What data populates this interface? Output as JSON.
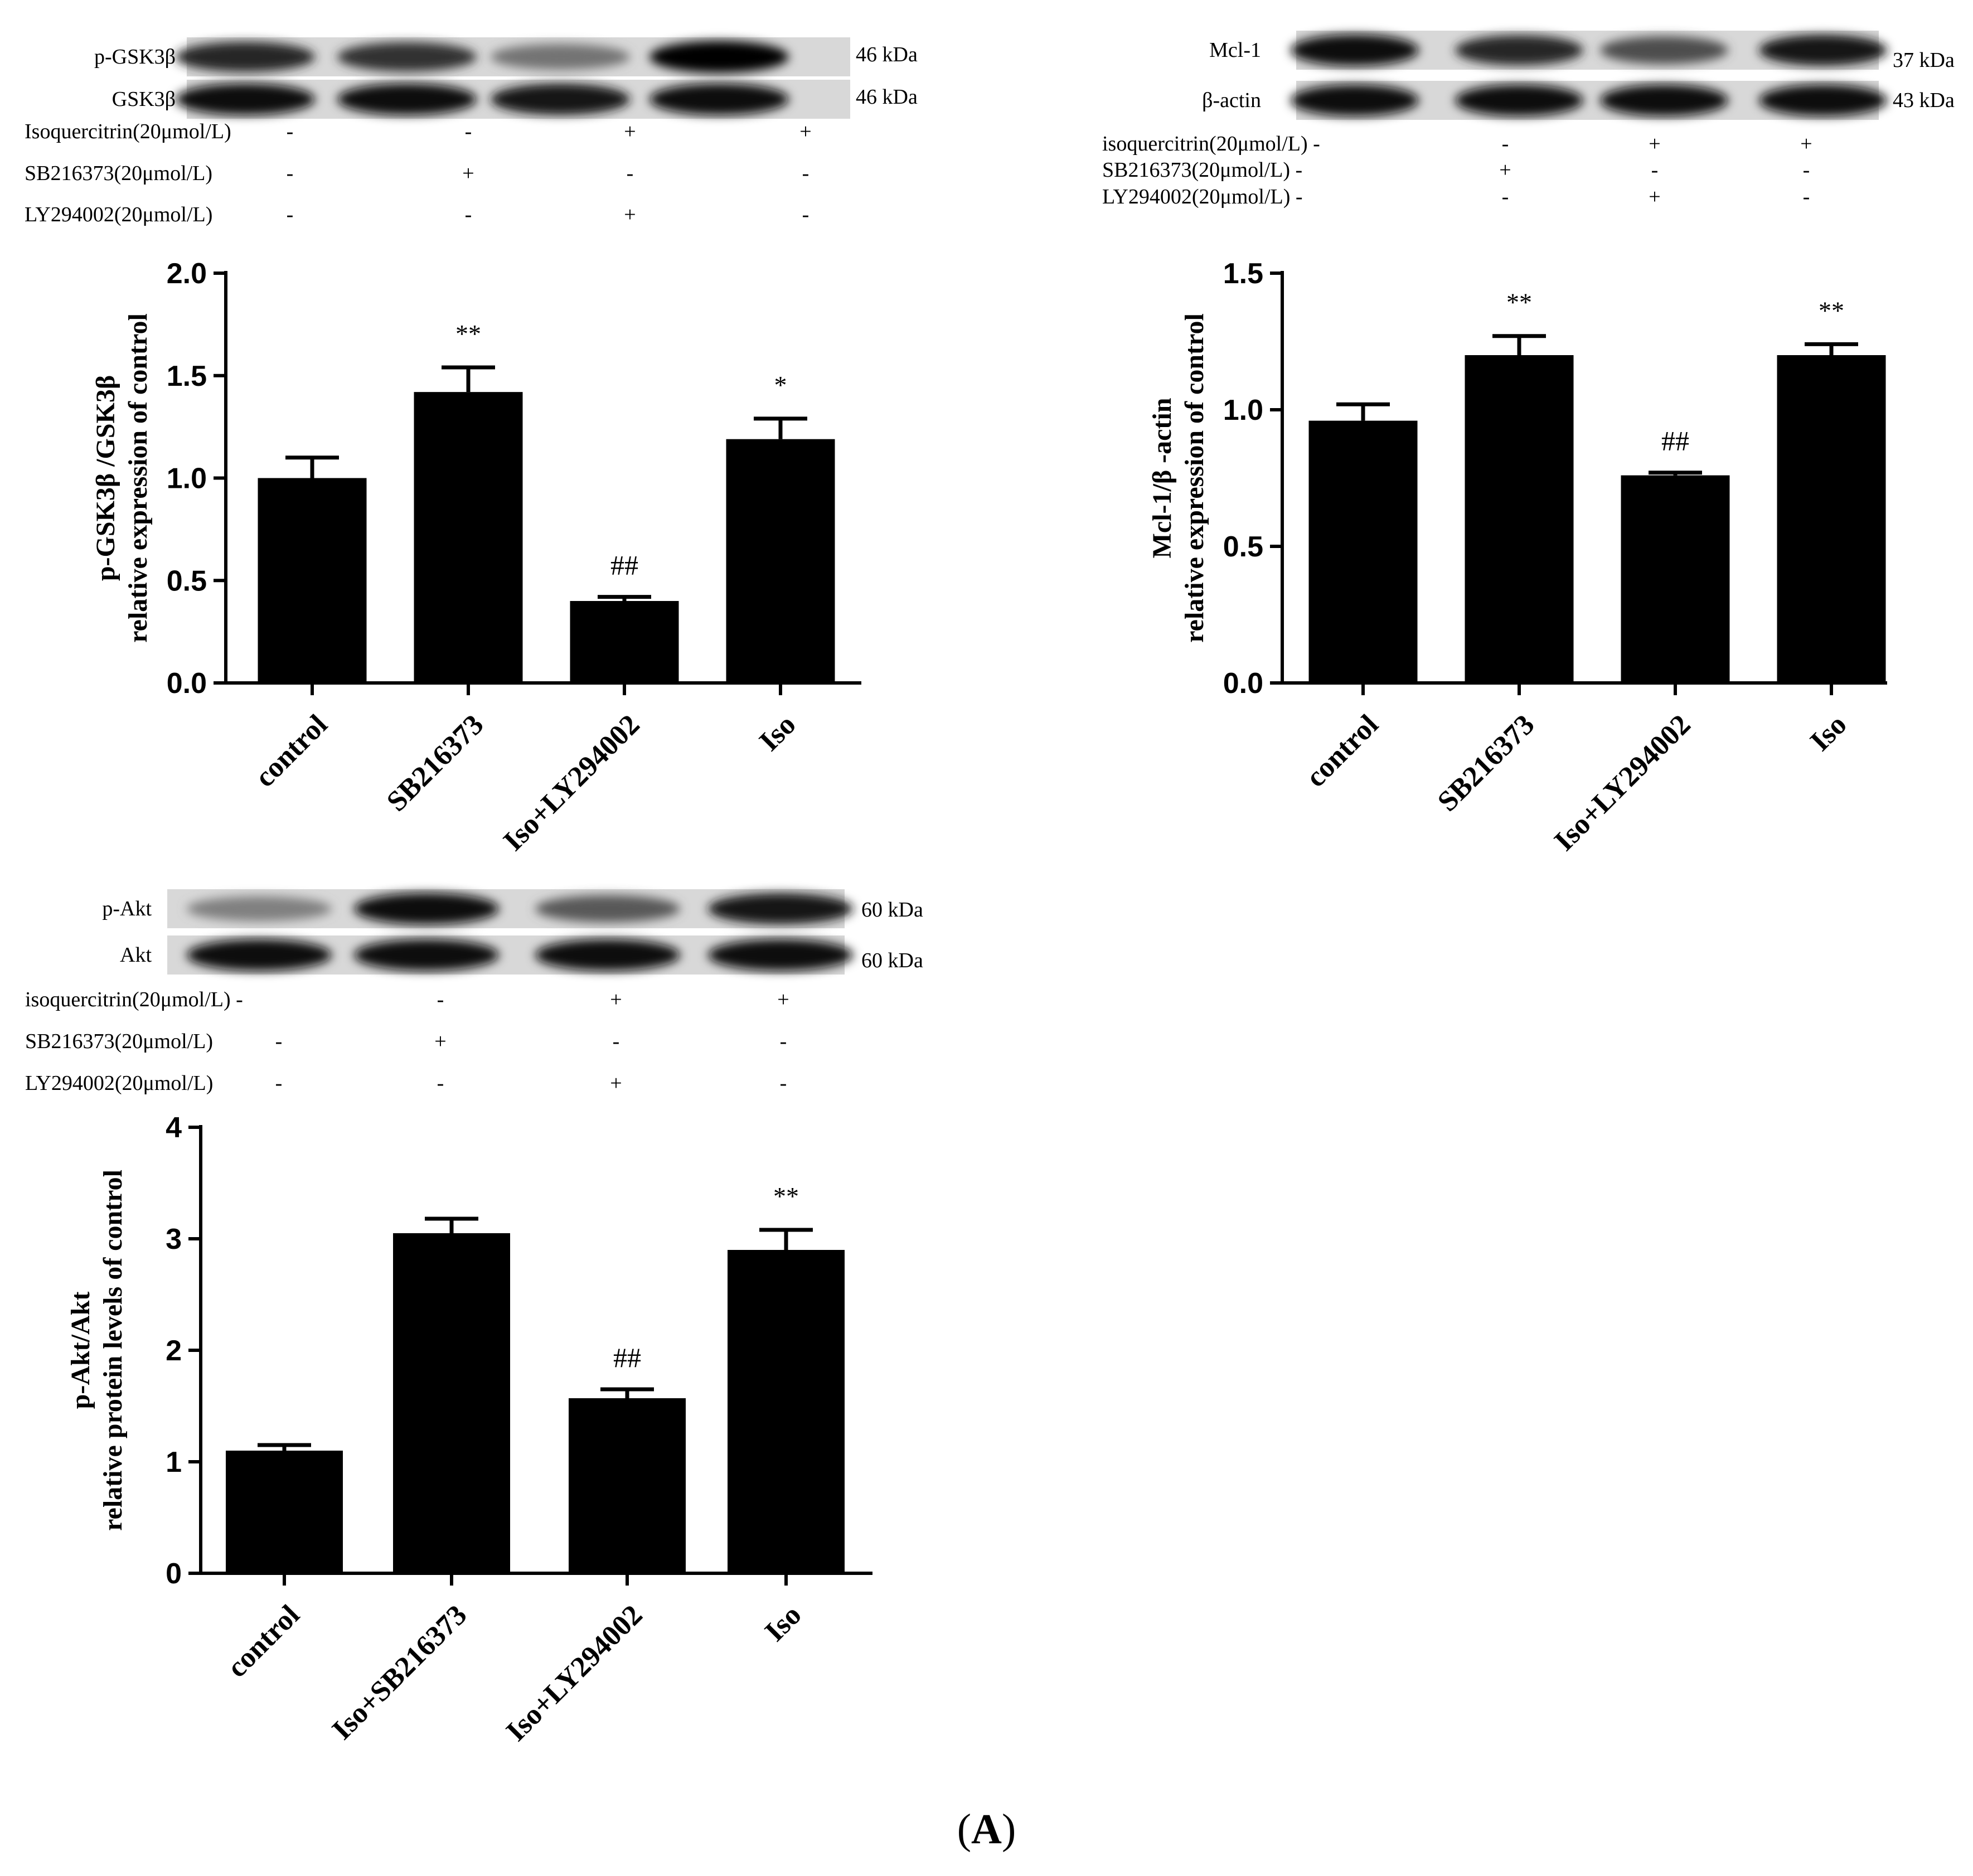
{
  "panel_label": "A",
  "panels": [
    {
      "blot": {
        "rows": [
          {
            "label": "p-GSK3β",
            "kda": "46 kDa",
            "intensity": [
              0.85,
              0.8,
              0.55,
              0.98
            ]
          },
          {
            "label": "GSK3β",
            "kda": "46 kDa",
            "intensity": [
              0.95,
              0.95,
              0.92,
              0.95
            ]
          }
        ],
        "treatments": [
          {
            "label": "Isoquercitrin(20μmol/L)",
            "signs": [
              "-",
              "-",
              "+",
              "+"
            ]
          },
          {
            "label": "SB216373(20μmol/L)",
            "signs": [
              "-",
              "+",
              "-",
              "-"
            ]
          },
          {
            "label": "LY294002(20μmol/L)",
            "signs": [
              "-",
              "-",
              "+",
              "-"
            ]
          }
        ]
      }
    },
    {
      "blot": {
        "rows": [
          {
            "label": "Mcl-1",
            "kda": "37 kDa",
            "intensity": [
              0.95,
              0.85,
              0.7,
              0.9
            ]
          },
          {
            "label": "β-actin",
            "kda": "43 kDa",
            "intensity": [
              0.95,
              0.95,
              0.95,
              0.95
            ]
          }
        ],
        "treatments": [
          {
            "label": "isoquercitrin(20μmol/L) -",
            "signs": [
              "-",
              "+",
              "+"
            ]
          },
          {
            "label": "SB216373(20μmol/L) -",
            "signs": [
              "+",
              "-",
              "-"
            ]
          },
          {
            "label": "LY294002(20μmol/L) -",
            "signs": [
              "-",
              "+",
              "-"
            ]
          }
        ]
      }
    },
    {
      "blot": {
        "rows": [
          {
            "label": "p-Akt",
            "kda": "60 kDa",
            "intensity": [
              0.5,
              0.95,
              0.65,
              0.9
            ]
          },
          {
            "label": "Akt",
            "kda": "60 kDa",
            "intensity": [
              0.95,
              0.95,
              0.95,
              0.95
            ]
          }
        ],
        "treatments": [
          {
            "label": "isoquercitrin(20μmol/L) -",
            "signs": [
              "-",
              "+",
              "+"
            ]
          },
          {
            "label": "SB216373(20μmol/L)",
            "signs": [
              "-",
              "+",
              "-",
              "-"
            ]
          },
          {
            "label": "LY294002(20μmol/L)",
            "signs": [
              "-",
              "-",
              "+",
              "-"
            ]
          }
        ]
      }
    }
  ],
  "chart_data": [
    {
      "type": "bar",
      "categories": [
        "control",
        "SB216373",
        "Iso+LY294002",
        "Iso"
      ],
      "values": [
        1.0,
        1.42,
        0.4,
        1.19
      ],
      "errors": [
        0.1,
        0.12,
        0.02,
        0.1
      ],
      "annotations": [
        "",
        "**",
        "##",
        "*"
      ],
      "ylabel": [
        "p-GSK3β /GSK3β",
        "relative expression of control"
      ],
      "ylim": [
        0,
        2.0
      ],
      "yticks": [
        0.0,
        0.5,
        1.0,
        1.5,
        2.0
      ],
      "ytick_labels": [
        "0.0",
        "0.5",
        "1.0",
        "1.5",
        "2.0"
      ],
      "grid": false,
      "bar_color": "#000000"
    },
    {
      "type": "bar",
      "categories": [
        "control",
        "SB216373",
        "Iso+LY294002",
        "Iso"
      ],
      "values": [
        0.96,
        1.2,
        0.76,
        1.2
      ],
      "errors": [
        0.06,
        0.07,
        0.01,
        0.04
      ],
      "annotations": [
        "",
        "**",
        "##",
        "**"
      ],
      "ylabel": [
        "Mcl-1/β -actin",
        "relative expression of control"
      ],
      "ylim": [
        0,
        1.5
      ],
      "yticks": [
        0.0,
        0.5,
        1.0,
        1.5
      ],
      "ytick_labels": [
        "0.0",
        "0.5",
        "1.0",
        "1.5"
      ],
      "grid": false,
      "bar_color": "#000000"
    },
    {
      "type": "bar",
      "categories": [
        "control",
        "Iso+SB216373",
        "Iso+LY294002",
        "Iso"
      ],
      "values": [
        1.1,
        3.05,
        1.57,
        2.9
      ],
      "errors": [
        0.05,
        0.13,
        0.08,
        0.18
      ],
      "annotations": [
        "",
        "",
        "##",
        "**"
      ],
      "ylabel": [
        "p-Akt/Akt",
        "relative protein levels of control"
      ],
      "ylim": [
        0,
        4
      ],
      "yticks": [
        0,
        1,
        2,
        3,
        4
      ],
      "ytick_labels": [
        "0",
        "1",
        "2",
        "3",
        "4"
      ],
      "grid": false,
      "bar_color": "#000000"
    }
  ]
}
